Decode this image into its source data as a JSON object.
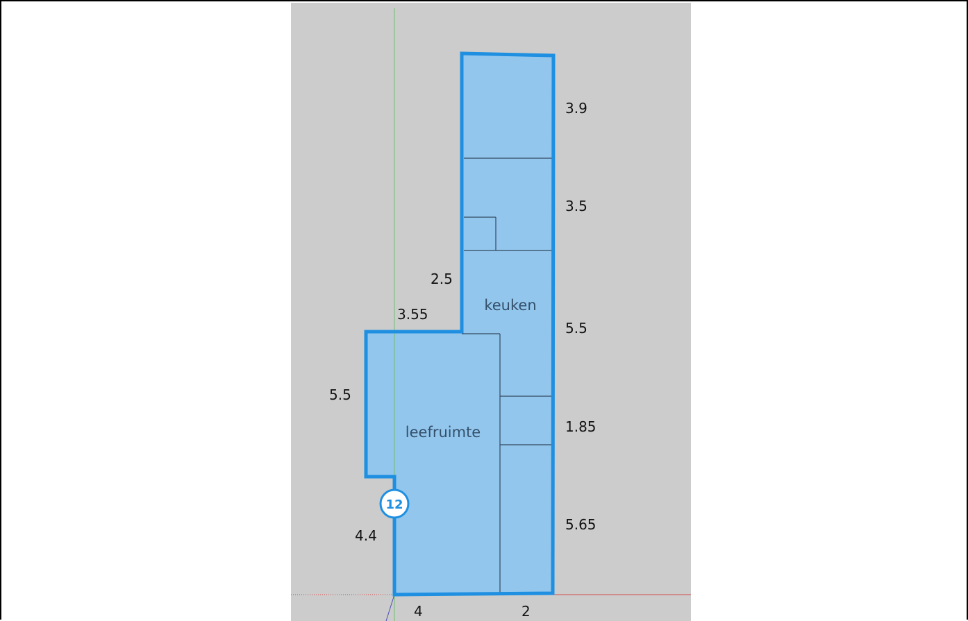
{
  "colors": {
    "canvas_background": "#cccccc",
    "room_fill": "#93c6ed",
    "outline": "#1e8fe1",
    "inner_lines": "#33495f",
    "green_axis": "#6fbf6f",
    "red_axis": "#d44a4a",
    "blue_axis": "#4b4bb7",
    "badge_fill": "#ffffff",
    "badge_text": "#1e8fe1"
  },
  "rooms": {
    "keuken": "keuken",
    "leefruimte": "leefruimte"
  },
  "dimensions": {
    "right_top": "3.9",
    "right_second": "3.5",
    "right_middle": "5.5",
    "right_small": "1.85",
    "right_bottom": "5.65",
    "step_vertical": "2.5",
    "step_horizontal": "3.55",
    "left_upper": "5.5",
    "left_lower": "4.4",
    "bottom_left": "4",
    "bottom_right": "2"
  },
  "badge": {
    "number": "12",
    "icon": "numbered-circle-icon"
  },
  "axes": {
    "green_axis": "green-axis-line",
    "red_axis": "red-axis-line",
    "blue_axis": "blue-axis-line"
  }
}
